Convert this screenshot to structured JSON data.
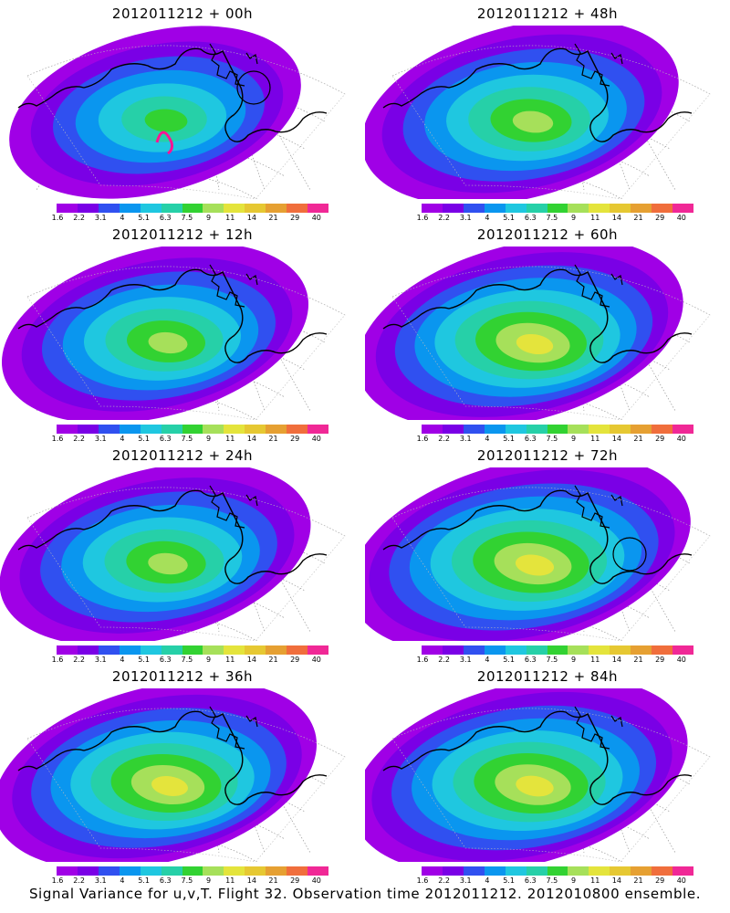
{
  "footer": "Signal Variance for u,v,T. Flight 32. Observation time 2012011212. 2012010800 ensemble.",
  "colorbar": {
    "labels": [
      "1.6",
      "2.2",
      "3.1",
      "4",
      "5.1",
      "6.3",
      "7.5",
      "9",
      "11",
      "14",
      "21",
      "29",
      "40"
    ],
    "colors": [
      "#a000e6",
      "#7a00e6",
      "#3050f0",
      "#0a96ef",
      "#1fc7e0",
      "#26d0a8",
      "#32d232",
      "#a6e05a",
      "#e4e43c",
      "#e6c832",
      "#e6a032",
      "#f06e3c",
      "#f02896"
    ]
  },
  "panels": [
    {
      "title": "2012011212 + 00h",
      "circle": true
    },
    {
      "title": "2012011212 + 48h",
      "circle": false
    },
    {
      "title": "2012011212 + 12h",
      "circle": false
    },
    {
      "title": "2012011212 + 60h",
      "circle": false
    },
    {
      "title": "2012011212 + 24h",
      "circle": false
    },
    {
      "title": "2012011212 + 72h",
      "circle": true
    },
    {
      "title": "2012011212 + 36h",
      "circle": false
    },
    {
      "title": "2012011212 + 84h",
      "circle": false
    }
  ]
}
